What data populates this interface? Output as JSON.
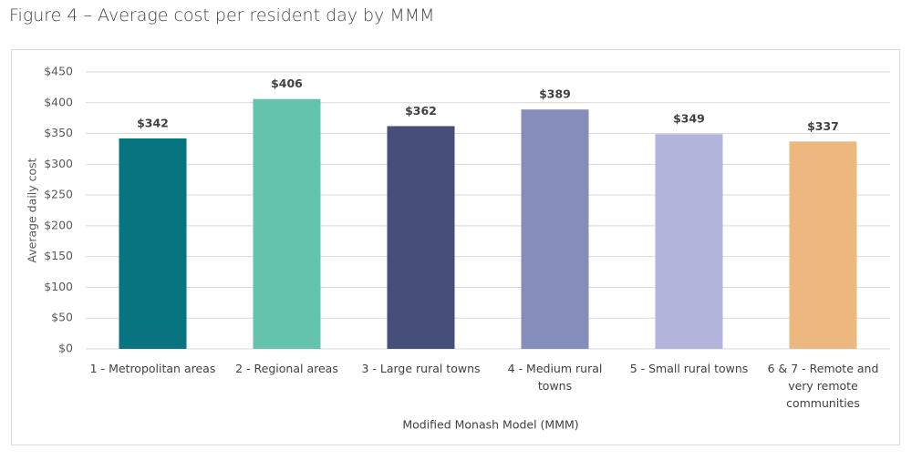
{
  "chart_data": {
    "type": "bar",
    "title": "Figure 4 – Average cost per resident day by MMM",
    "y_label": "Average daily cost",
    "x_label": "Modified Monash Model (MMM)",
    "categories": [
      "1 - Metropolitan areas",
      "2 - Regional areas",
      "3 - Large rural towns",
      "4 - Medium rural towns",
      "5 - Small rural towns",
      "6 & 7 - Remote and very remote communities"
    ],
    "values": [
      342,
      406,
      362,
      389,
      349,
      337
    ],
    "value_labels": [
      "$342",
      "$406",
      "$362",
      "$389",
      "$349",
      "$337"
    ],
    "colors": [
      "#077480",
      "#64c3ad",
      "#464e7a",
      "#858dbb",
      "#b2b4db",
      "#edb880"
    ],
    "ylim": [
      0,
      450
    ],
    "yticks": [
      {
        "value": 0,
        "label": "$0"
      },
      {
        "value": 50,
        "label": "$50"
      },
      {
        "value": 100,
        "label": "$100"
      },
      {
        "value": 150,
        "label": "$150"
      },
      {
        "value": 200,
        "label": "$200"
      },
      {
        "value": 250,
        "label": "$250"
      },
      {
        "value": 300,
        "label": "$300"
      },
      {
        "value": 350,
        "label": "$350"
      },
      {
        "value": 400,
        "label": "$400"
      },
      {
        "value": 450,
        "label": "$450"
      }
    ],
    "grid": true
  }
}
